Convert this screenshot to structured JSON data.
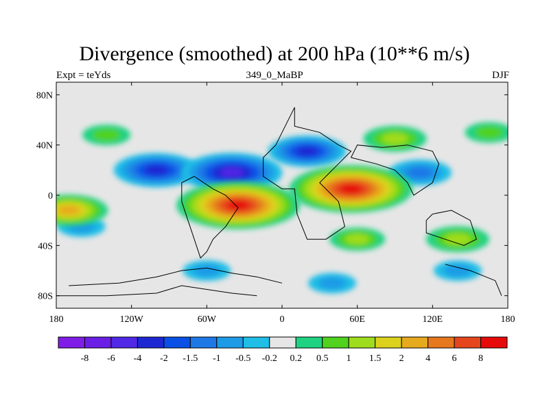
{
  "chart_data": {
    "type": "heatmap",
    "title": "Divergence (smoothed) at 200 hPa (10**6 m/s)",
    "subtitle_left": "Expt = teYds",
    "subtitle_center": "349_0_MaBP",
    "subtitle_right": "DJF",
    "x_ticks": [
      {
        "value": -180,
        "label": "180"
      },
      {
        "value": -120,
        "label": "120W"
      },
      {
        "value": -60,
        "label": "60W"
      },
      {
        "value": 0,
        "label": "0"
      },
      {
        "value": 60,
        "label": "60E"
      },
      {
        "value": 120,
        "label": "120E"
      },
      {
        "value": 180,
        "label": "180"
      }
    ],
    "y_ticks": [
      {
        "value": 80,
        "label": "80N"
      },
      {
        "value": 40,
        "label": "40N"
      },
      {
        "value": 0,
        "label": "0"
      },
      {
        "value": -40,
        "label": "40S"
      },
      {
        "value": -80,
        "label": "80S"
      }
    ],
    "xlim": [
      -180,
      180
    ],
    "ylim": [
      -90,
      90
    ],
    "colorbar": {
      "levels": [
        "-8",
        "-6",
        "-4",
        "-2",
        "-1.5",
        "-1",
        "-0.5",
        "-0.2",
        "0.2",
        "0.5",
        "1",
        "1.5",
        "2",
        "4",
        "6",
        "8"
      ],
      "colors": [
        "#7f1ee6",
        "#6a1ee6",
        "#5028e6",
        "#1e28d2",
        "#0a50e6",
        "#1e78e6",
        "#1e9be6",
        "#1ebee6",
        "#e6e6e6",
        "#1ed282",
        "#50d21e",
        "#a0dc1e",
        "#dcd21e",
        "#e6aa1e",
        "#e6781e",
        "#e6461e",
        "#e60a0a"
      ]
    },
    "fields": [
      {
        "sign": "negative",
        "lon": -100,
        "lat": 20,
        "magnitude": 3.5
      },
      {
        "sign": "negative",
        "lon": -40,
        "lat": 18,
        "magnitude": 4.5
      },
      {
        "sign": "negative",
        "lon": 20,
        "lat": 35,
        "magnitude": 3.0
      },
      {
        "sign": "negative",
        "lon": 110,
        "lat": 18,
        "magnitude": 2.0
      },
      {
        "sign": "negative",
        "lon": -160,
        "lat": -25,
        "magnitude": 1.0
      },
      {
        "sign": "negative",
        "lon": -60,
        "lat": -60,
        "magnitude": 1.0
      },
      {
        "sign": "negative",
        "lon": 40,
        "lat": -70,
        "magnitude": 1.0
      },
      {
        "sign": "negative",
        "lon": 140,
        "lat": -60,
        "magnitude": 1.0
      },
      {
        "sign": "positive",
        "lon": -35,
        "lat": -8,
        "magnitude": 6.0
      },
      {
        "sign": "positive",
        "lon": 55,
        "lat": 5,
        "magnitude": 6.0
      },
      {
        "sign": "positive",
        "lon": -170,
        "lat": -12,
        "magnitude": 3.0
      },
      {
        "sign": "positive",
        "lon": 90,
        "lat": 45,
        "magnitude": 2.0
      },
      {
        "sign": "positive",
        "lon": -140,
        "lat": 48,
        "magnitude": 1.0
      },
      {
        "sign": "positive",
        "lon": 140,
        "lat": -35,
        "magnitude": 2.0
      },
      {
        "sign": "positive",
        "lon": 60,
        "lat": -35,
        "magnitude": 1.5
      },
      {
        "sign": "positive",
        "lon": 165,
        "lat": 50,
        "magnitude": 1.0
      }
    ]
  }
}
